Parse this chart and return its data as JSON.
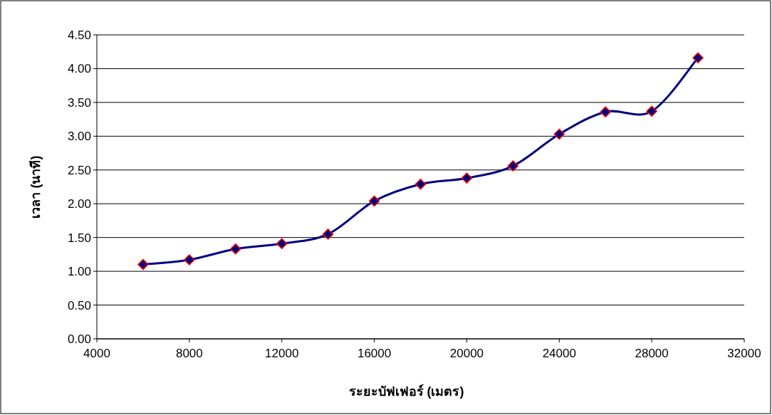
{
  "chart_data": {
    "type": "line",
    "xlabel": "ระยะบัฟเฟอร์ (เมตร)",
    "ylabel": "เวลา (นาที)",
    "x": [
      6000,
      8000,
      10000,
      12000,
      14000,
      16000,
      18000,
      20000,
      22000,
      24000,
      26000,
      28000,
      30000
    ],
    "series": [
      {
        "color": "#000080",
        "values": [
          1.1,
          1.17,
          1.33,
          1.41,
          1.55,
          2.04,
          2.29,
          2.38,
          2.56,
          3.03,
          3.36,
          3.37,
          4.16
        ]
      }
    ],
    "xlim": [
      4000,
      32000
    ],
    "xticks": [
      4000,
      8000,
      12000,
      16000,
      20000,
      24000,
      28000,
      32000
    ],
    "ylim": [
      0,
      4.5
    ],
    "yticks": [
      {
        "value": 0,
        "label": "0.00"
      },
      {
        "value": 0.5,
        "label": "0.50"
      },
      {
        "value": 1,
        "label": "1.00"
      },
      {
        "value": 1.5,
        "label": "1.50"
      },
      {
        "value": 2,
        "label": "2.00"
      },
      {
        "value": 2.5,
        "label": "2.50"
      },
      {
        "value": 3,
        "label": "3.00"
      },
      {
        "value": 3.5,
        "label": "3.50"
      },
      {
        "value": 4,
        "label": "4.00"
      },
      {
        "value": 4.5,
        "label": "4.50"
      }
    ],
    "grid": "y",
    "marker": "diamond",
    "line_style": "solid"
  }
}
